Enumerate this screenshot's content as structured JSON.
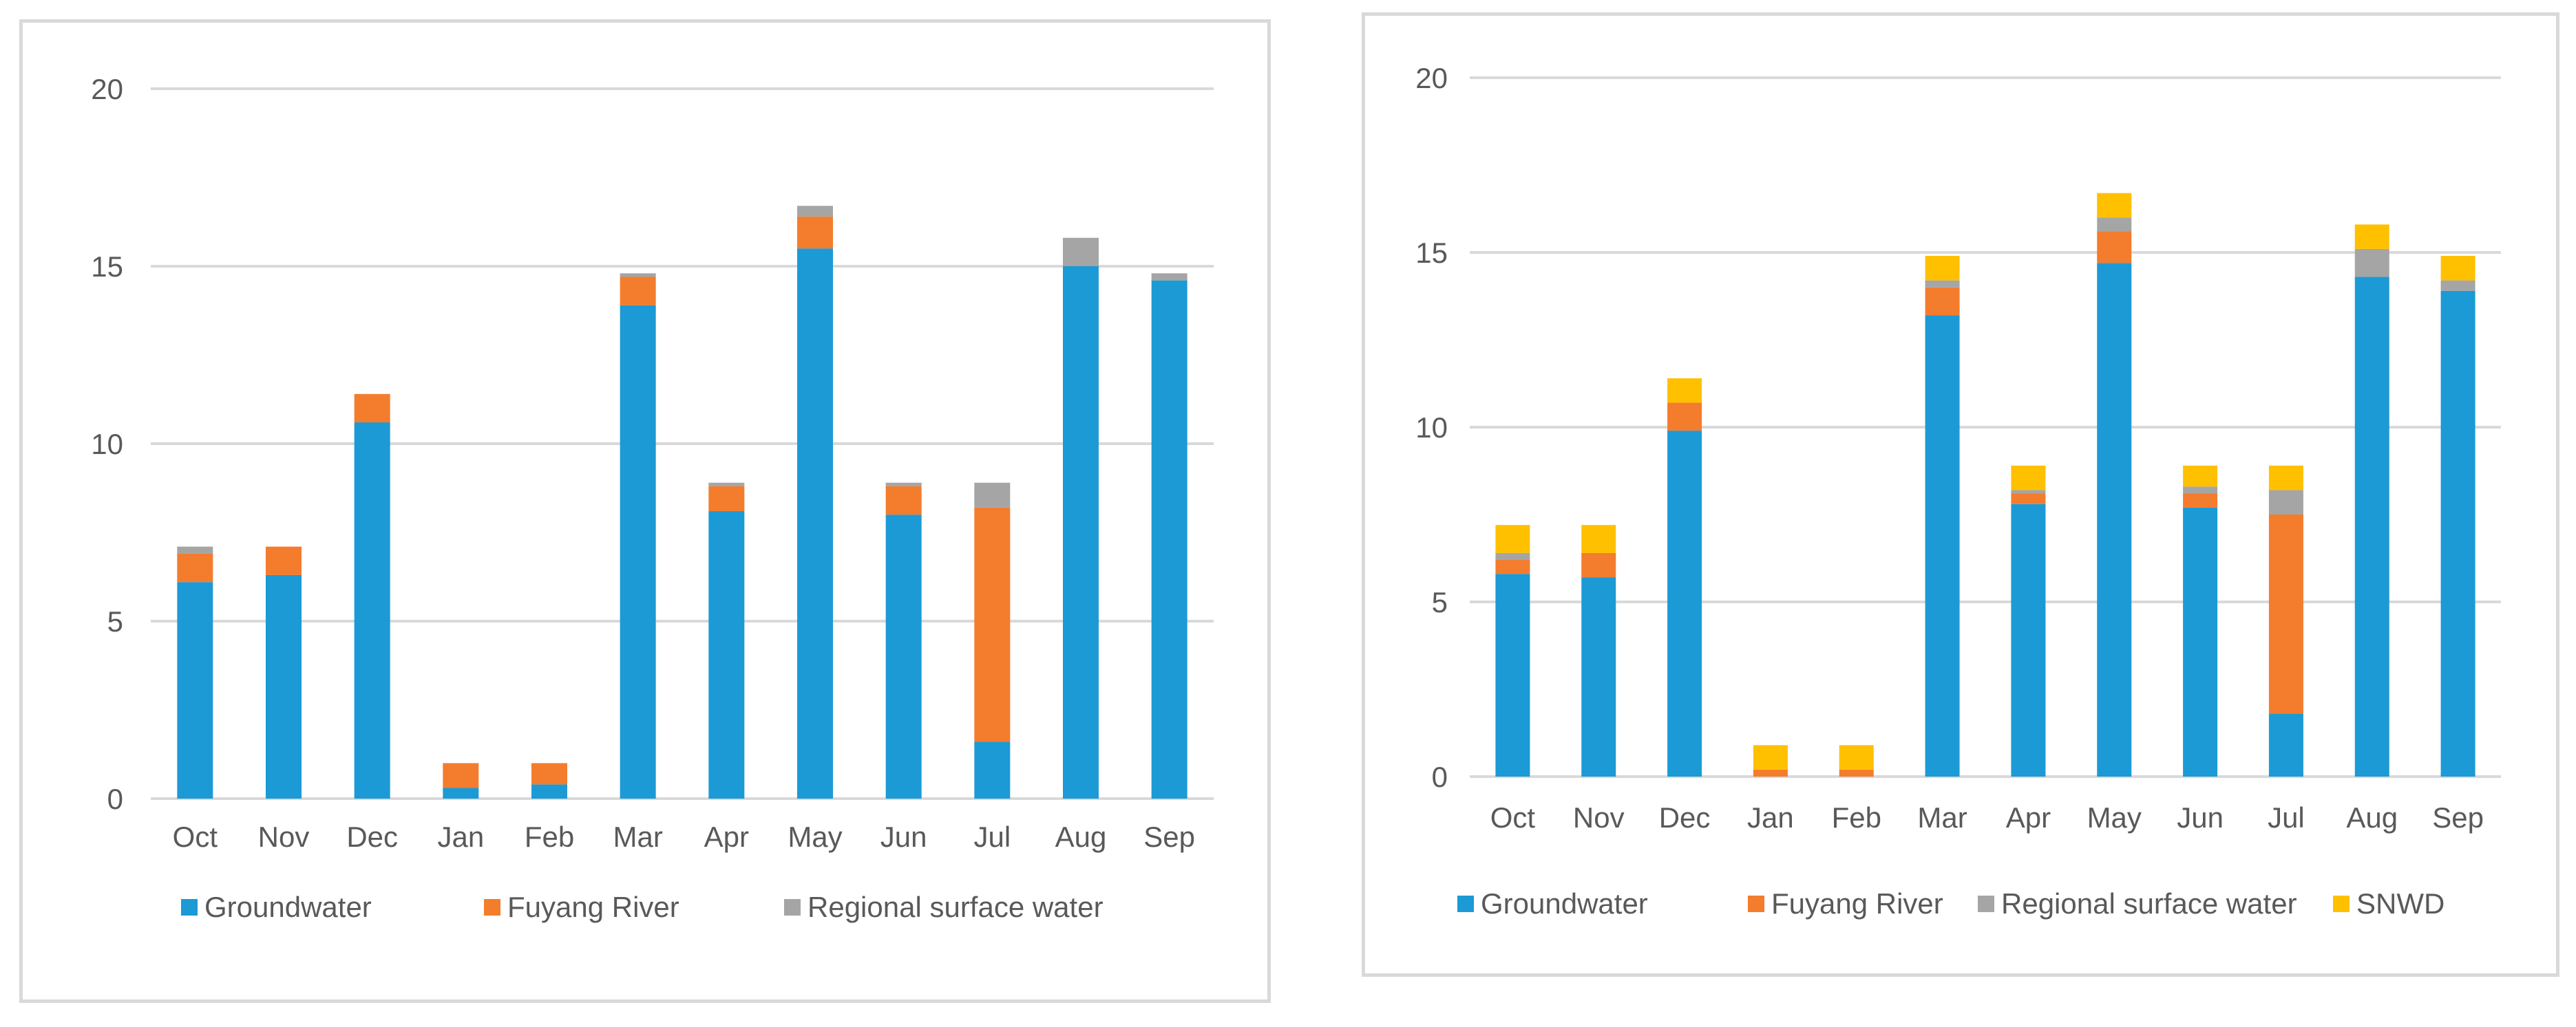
{
  "colors": {
    "groundwater": "#1b9ad6",
    "fuyang_river": "#f47c2d",
    "regional_surface_water": "#a5a5a5",
    "snwd": "#ffc000",
    "gridline": "#d9d9d9",
    "text": "#595959"
  },
  "chart_data": [
    {
      "type": "bar",
      "stacked": true,
      "title": "",
      "xlabel": "",
      "ylabel": "",
      "ylim": [
        0,
        20
      ],
      "yticks": [
        "0",
        "5",
        "10",
        "15",
        "20"
      ],
      "categories": [
        "Oct",
        "Nov",
        "Dec",
        "Jan",
        "Feb",
        "Mar",
        "Apr",
        "May",
        "Jun",
        "Jul",
        "Aug",
        "Sep"
      ],
      "legend_position": "bottom",
      "series": [
        {
          "name": "Groundwater",
          "color_key": "groundwater",
          "values": [
            6.1,
            6.3,
            10.6,
            0.3,
            0.4,
            13.9,
            8.1,
            15.5,
            8.0,
            1.6,
            15.0,
            14.6
          ]
        },
        {
          "name": "Fuyang River",
          "color_key": "fuyang_river",
          "values": [
            0.8,
            0.8,
            0.8,
            0.7,
            0.6,
            0.8,
            0.7,
            0.9,
            0.8,
            6.6,
            0.0,
            0.0
          ]
        },
        {
          "name": "Regional surface water",
          "color_key": "regional_surface_water",
          "values": [
            0.2,
            0.0,
            0.0,
            0.0,
            0.0,
            0.1,
            0.1,
            0.3,
            0.1,
            0.7,
            0.8,
            0.2
          ]
        }
      ]
    },
    {
      "type": "bar",
      "stacked": true,
      "title": "",
      "xlabel": "",
      "ylabel": "",
      "ylim": [
        0,
        20
      ],
      "yticks": [
        "0",
        "5",
        "10",
        "15",
        "20"
      ],
      "categories": [
        "Oct",
        "Nov",
        "Dec",
        "Jan",
        "Feb",
        "Mar",
        "Apr",
        "May",
        "Jun",
        "Jul",
        "Aug",
        "Sep"
      ],
      "legend_position": "bottom",
      "series": [
        {
          "name": "Groundwater",
          "color_key": "groundwater",
          "values": [
            5.8,
            5.7,
            9.9,
            0.0,
            0.0,
            13.2,
            7.8,
            14.7,
            7.7,
            1.8,
            14.3,
            13.9
          ]
        },
        {
          "name": "Fuyang River",
          "color_key": "fuyang_river",
          "values": [
            0.4,
            0.7,
            0.8,
            0.2,
            0.2,
            0.8,
            0.3,
            0.9,
            0.4,
            5.7,
            0.0,
            0.0
          ]
        },
        {
          "name": "Regional surface water",
          "color_key": "regional_surface_water",
          "values": [
            0.2,
            0.0,
            0.0,
            0.0,
            0.0,
            0.2,
            0.1,
            0.4,
            0.2,
            0.7,
            0.8,
            0.3
          ]
        },
        {
          "name": "SNWD",
          "color_key": "snwd",
          "values": [
            0.8,
            0.8,
            0.7,
            0.7,
            0.7,
            0.7,
            0.7,
            0.7,
            0.6,
            0.7,
            0.7,
            0.7
          ]
        }
      ]
    }
  ]
}
